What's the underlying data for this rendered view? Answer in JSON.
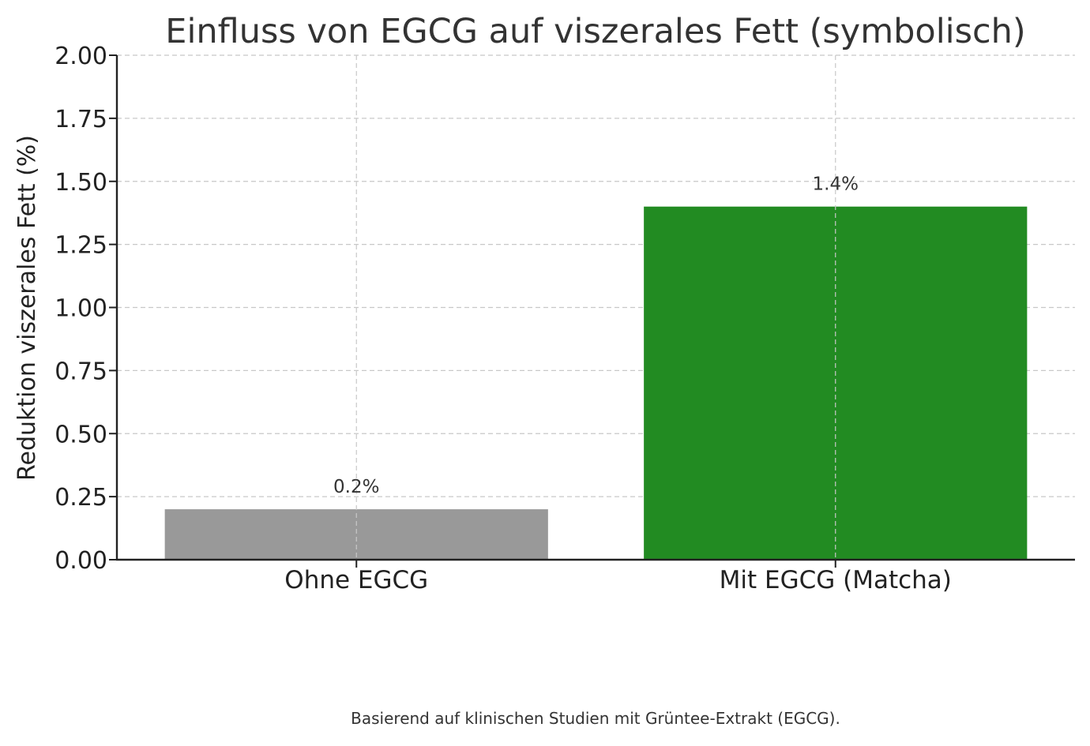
{
  "chart_data": {
    "type": "bar",
    "title": "Einfluss von EGCG auf viszerales Fett (symbolisch)",
    "ylabel": "Reduktion viszerales Fett (%)",
    "xlabel": "",
    "categories": [
      "Ohne EGCG",
      "Mit EGCG (Matcha)"
    ],
    "values": [
      0.2,
      1.4
    ],
    "data_labels": [
      "0.2%",
      "1.4%"
    ],
    "colors": [
      "#999999",
      "#228b22"
    ],
    "ylim": [
      0,
      2.0
    ],
    "yticks": [
      0.0,
      0.25,
      0.5,
      0.75,
      1.0,
      1.25,
      1.5,
      1.75,
      2.0
    ],
    "ytick_labels": [
      "0.00",
      "0.25",
      "0.50",
      "0.75",
      "1.00",
      "1.25",
      "1.50",
      "1.75",
      "2.00"
    ],
    "grid": true,
    "footnote": "Basierend auf klinischen Studien mit Grüntee-Extrakt (EGCG)."
  }
}
